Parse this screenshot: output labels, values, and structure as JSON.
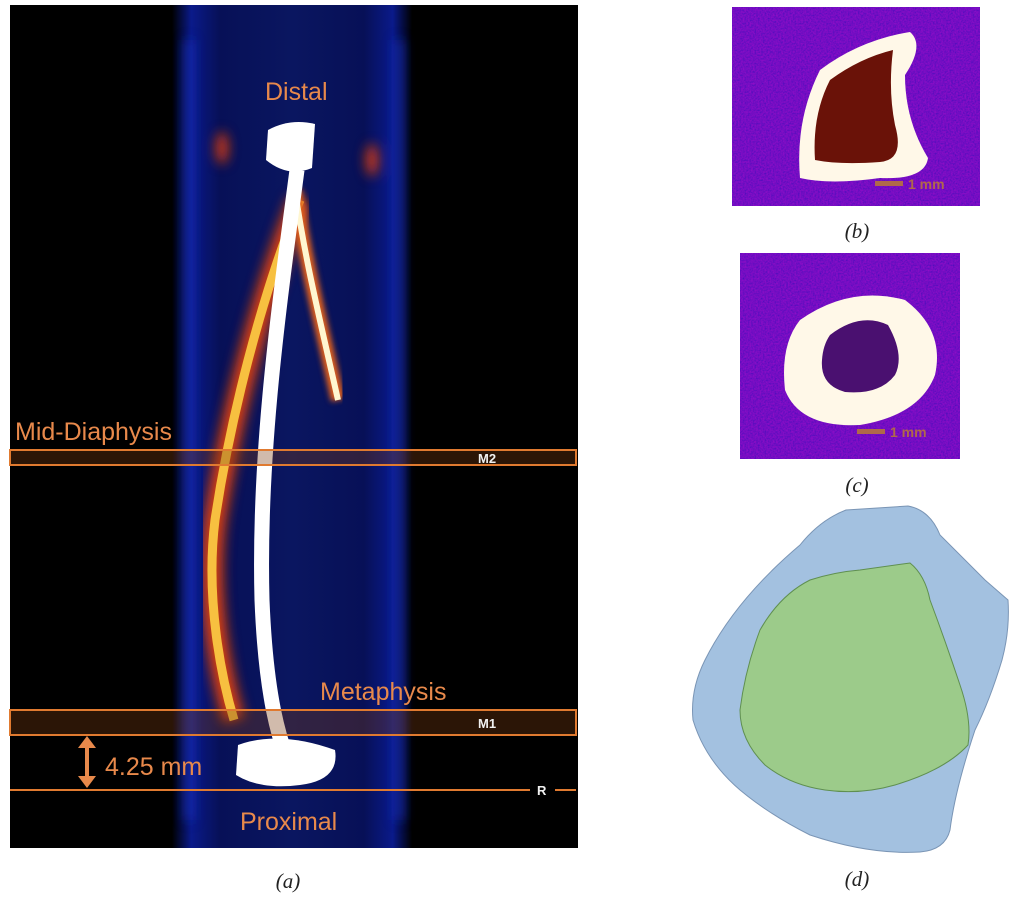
{
  "figure": {
    "panels": [
      {
        "label": "(a)",
        "annotations": {
          "distal": "Distal",
          "mid_diaphysis": "Mid-Diaphysis",
          "m2": "M2",
          "metaphysis": "Metaphysis",
          "m1": "M1",
          "distance": "4.25 mm",
          "reference": "R",
          "proximal": "Proximal"
        }
      },
      {
        "label": "(b)",
        "scale_bar": "1 mm"
      },
      {
        "label": "(c)",
        "scale_bar": "1 mm"
      },
      {
        "label": "(d)"
      }
    ]
  }
}
